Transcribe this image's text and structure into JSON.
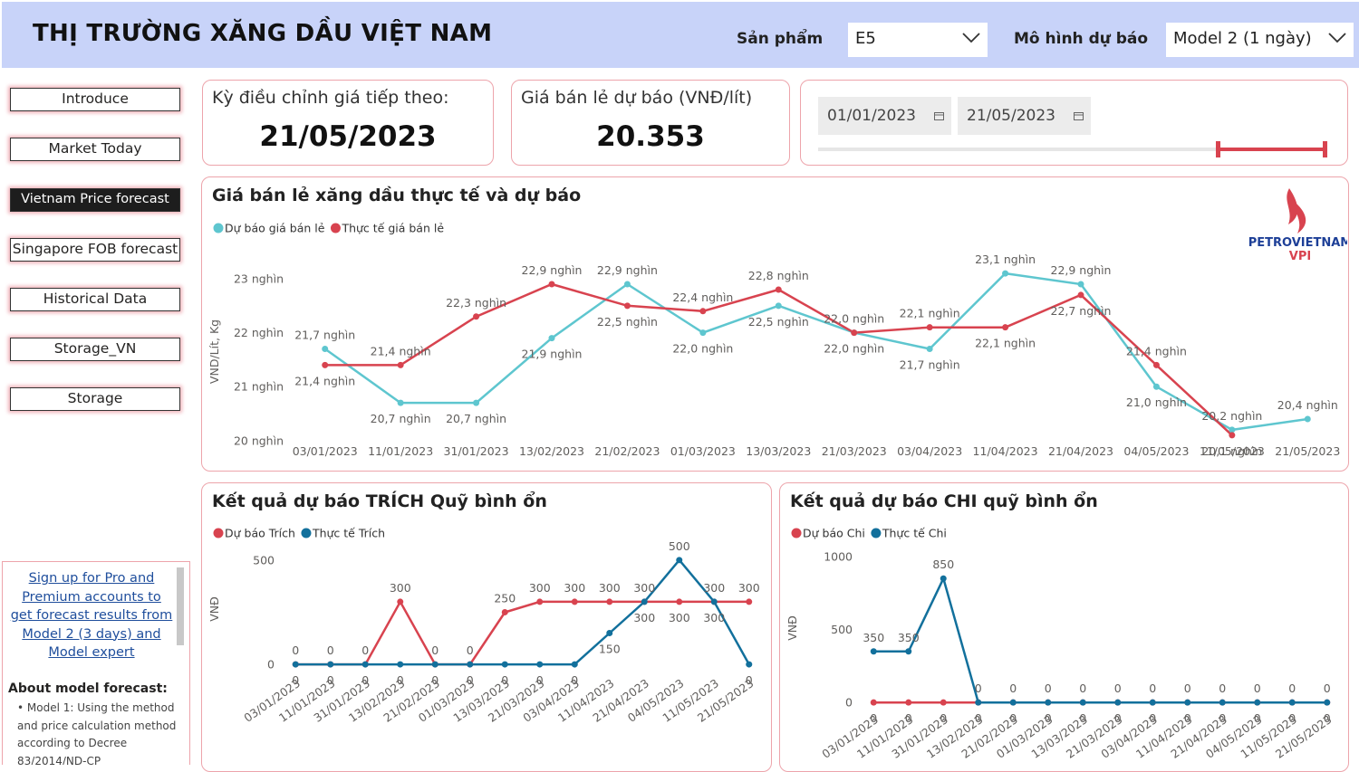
{
  "header": {
    "title": "THỊ TRƯỜNG XĂNG DẦU VIỆT NAM",
    "filters": [
      {
        "label": "Sản phẩm",
        "value": "E5"
      },
      {
        "label": "Mô hình dự báo",
        "value": "Model 2 (1 ngày)"
      }
    ]
  },
  "nav": [
    "Introduce",
    "Market Today",
    "Vietnam Price forecast",
    "Singapore FOB forecast",
    "Historical Data",
    "Storage_VN",
    "Storage"
  ],
  "kpis": [
    {
      "label": "Kỳ điều chỉnh giá tiếp theo:",
      "value": "21/05/2023"
    },
    {
      "label": "Giá bán lẻ dự báo (VNĐ/lít)",
      "value": "20.353"
    }
  ],
  "date_filter": {
    "start": "01/01/2023",
    "end": "21/05/2023"
  },
  "sidebar": {
    "link": "Sign up for Pro and Premium accounts to get forecast results from Model 2 (3 days) and Model expert",
    "heading": "About model forecast:",
    "bullet": "Model 1: Using the method and price calculation method according to Decree 83/2014/ND-CP"
  },
  "logo": {
    "name": "PETROVIETNAM",
    "sub": "VPI"
  },
  "chart_data": [
    {
      "type": "line",
      "title": "Giá bán lẻ xăng dầu thực tế và dự báo",
      "y_label": "VND/Lít, Kg",
      "categories": [
        "03/01/2023",
        "11/01/2023",
        "31/01/2023",
        "13/02/2023",
        "21/02/2023",
        "01/03/2023",
        "13/03/2023",
        "21/03/2023",
        "03/04/2023",
        "11/04/2023",
        "21/04/2023",
        "04/05/2023",
        "11/05/2023",
        "21/05/2023"
      ],
      "series": [
        {
          "name": "Dự báo giá bán lẻ",
          "color": "#5ec6cf",
          "values": [
            21700,
            20700,
            20700,
            21900,
            22900,
            22000,
            22500,
            22000,
            21700,
            23100,
            22900,
            21000,
            20200,
            20400
          ],
          "value_labels": [
            "21,7 nghìn",
            "20,7 nghìn",
            "20,7 nghìn",
            "21,9 nghìn",
            "22,9 nghìn",
            "22,0 nghìn",
            "22,5 nghìn",
            "22,0 nghìn",
            "21,7 nghìn",
            "23,1 nghìn",
            "22,9 nghìn",
            "21,0 nghìn",
            "20,2 nghìn",
            "20,4 nghìn"
          ]
        },
        {
          "name": "Thực tế giá bán lẻ",
          "color": "#d8434f",
          "values": [
            21400,
            21400,
            22300,
            22900,
            22500,
            22400,
            22800,
            22000,
            22100,
            22100,
            22700,
            21400,
            20100,
            null
          ],
          "value_labels": [
            "21,4 nghìn",
            "21,4 nghìn",
            "22,3 nghìn",
            "22,9 nghìn",
            "22,5 nghìn",
            "22,4 nghìn",
            "22,8 nghìn",
            "22,0 nghìn",
            "22,1 nghìn",
            "22,1 nghìn",
            "22,7 nghìn",
            "21,4 nghìn",
            "20,1 nghìn",
            null
          ]
        }
      ],
      "ylim": [
        19930,
        23370
      ],
      "yticks": [
        {
          "value": 20000,
          "label": "20 nghìn"
        },
        {
          "value": 21000,
          "label": "21 nghìn"
        },
        {
          "value": 22000,
          "label": "22 nghìn"
        },
        {
          "value": 23000,
          "label": "23 nghìn"
        }
      ]
    },
    {
      "type": "line",
      "title": "Kết quả dự báo TRÍCH Quỹ bình ổn",
      "y_label": "VNĐ",
      "categories": [
        "03/01/2023",
        "11/01/2023",
        "31/01/2023",
        "13/02/2023",
        "21/02/2023",
        "01/03/2023",
        "13/03/2023",
        "21/03/2023",
        "03/04/2023",
        "11/04/2023",
        "21/04/2023",
        "04/05/2023",
        "11/05/2023",
        "21/05/2023"
      ],
      "series": [
        {
          "name": "Dự báo Trích",
          "color": "#d8434f",
          "values": [
            0,
            0,
            0,
            300,
            0,
            0,
            250,
            300,
            300,
            300,
            300,
            300,
            300,
            300
          ]
        },
        {
          "name": "Thực tế Trích",
          "color": "#12709c",
          "values": [
            0,
            0,
            0,
            0,
            0,
            0,
            0,
            0,
            0,
            150,
            300,
            500,
            300,
            0
          ]
        }
      ],
      "ylim": [
        -30,
        560
      ],
      "yticks": [
        0,
        500
      ]
    },
    {
      "type": "line",
      "title": "Kết quả dự báo CHI quỹ bình ổn",
      "y_label": "VNĐ",
      "categories": [
        "03/01/2023",
        "11/01/2023",
        "31/01/2023",
        "13/02/2023",
        "21/02/2023",
        "01/03/2023",
        "13/03/2023",
        "21/03/2023",
        "03/04/2023",
        "11/04/2023",
        "21/04/2023",
        "04/05/2023",
        "11/05/2023",
        "21/05/2023"
      ],
      "series": [
        {
          "name": "Dự báo Chi",
          "color": "#d8434f",
          "values": [
            0,
            0,
            0,
            0,
            0,
            0,
            0,
            0,
            0,
            0,
            0,
            0,
            0,
            0
          ]
        },
        {
          "name": "Thực tế Chi",
          "color": "#12709c",
          "values": [
            350,
            350,
            850,
            0,
            0,
            0,
            0,
            0,
            0,
            0,
            0,
            0,
            0,
            0
          ]
        }
      ],
      "ylim": [
        -30,
        1050
      ],
      "yticks": [
        0,
        500,
        1000
      ]
    }
  ]
}
